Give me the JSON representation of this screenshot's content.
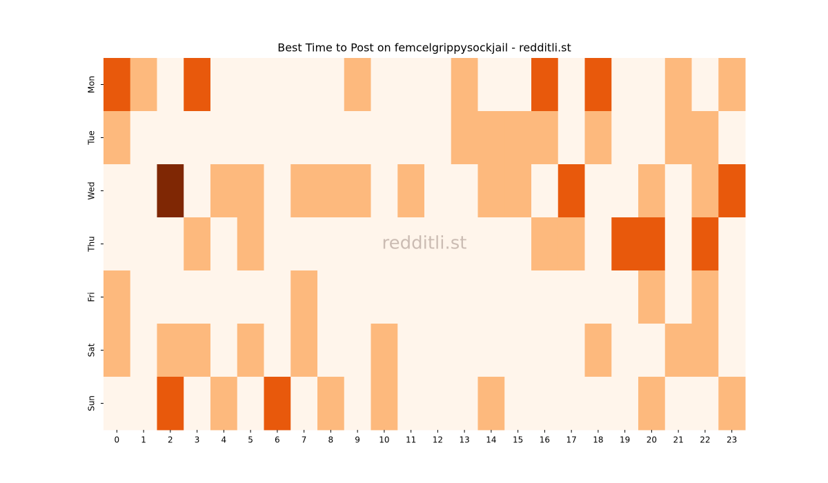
{
  "chart_data": {
    "type": "heatmap",
    "title": "Best Time to Post on femcelgrippysockjail - redditli.st",
    "watermark": "redditli.st",
    "x_categories": [
      0,
      1,
      2,
      3,
      4,
      5,
      6,
      7,
      8,
      9,
      10,
      11,
      12,
      13,
      14,
      15,
      16,
      17,
      18,
      19,
      20,
      21,
      22,
      23
    ],
    "y_categories": [
      "Mon",
      "Tue",
      "Wed",
      "Thu",
      "Fri",
      "Sat",
      "Sun"
    ],
    "values": [
      [
        2,
        1,
        0,
        2,
        0,
        0,
        0,
        0,
        0,
        1,
        0,
        0,
        0,
        1,
        0,
        0,
        2,
        0,
        2,
        0,
        0,
        1,
        0,
        1
      ],
      [
        1,
        0,
        0,
        0,
        0,
        0,
        0,
        0,
        0,
        0,
        0,
        0,
        0,
        1,
        1,
        1,
        1,
        0,
        1,
        0,
        0,
        1,
        1,
        0
      ],
      [
        0,
        0,
        3,
        0,
        1,
        1,
        0,
        1,
        1,
        1,
        0,
        1,
        0,
        0,
        1,
        1,
        0,
        2,
        0,
        0,
        1,
        0,
        1,
        2
      ],
      [
        0,
        0,
        0,
        1,
        0,
        1,
        0,
        0,
        0,
        0,
        0,
        0,
        0,
        0,
        0,
        0,
        1,
        1,
        0,
        2,
        2,
        0,
        2,
        0
      ],
      [
        1,
        0,
        0,
        0,
        0,
        0,
        0,
        1,
        0,
        0,
        0,
        0,
        0,
        0,
        0,
        0,
        0,
        0,
        0,
        0,
        1,
        0,
        1,
        0
      ],
      [
        1,
        0,
        1,
        1,
        0,
        1,
        0,
        1,
        0,
        0,
        1,
        0,
        0,
        0,
        0,
        0,
        0,
        0,
        1,
        0,
        0,
        1,
        1,
        0
      ],
      [
        0,
        0,
        2,
        0,
        1,
        0,
        2,
        0,
        1,
        0,
        1,
        0,
        0,
        0,
        1,
        0,
        0,
        0,
        0,
        0,
        1,
        0,
        0,
        1
      ]
    ],
    "colorscale": [
      "#fff5eb",
      "#fdb97d",
      "#e8590c",
      "#7f2704"
    ]
  }
}
